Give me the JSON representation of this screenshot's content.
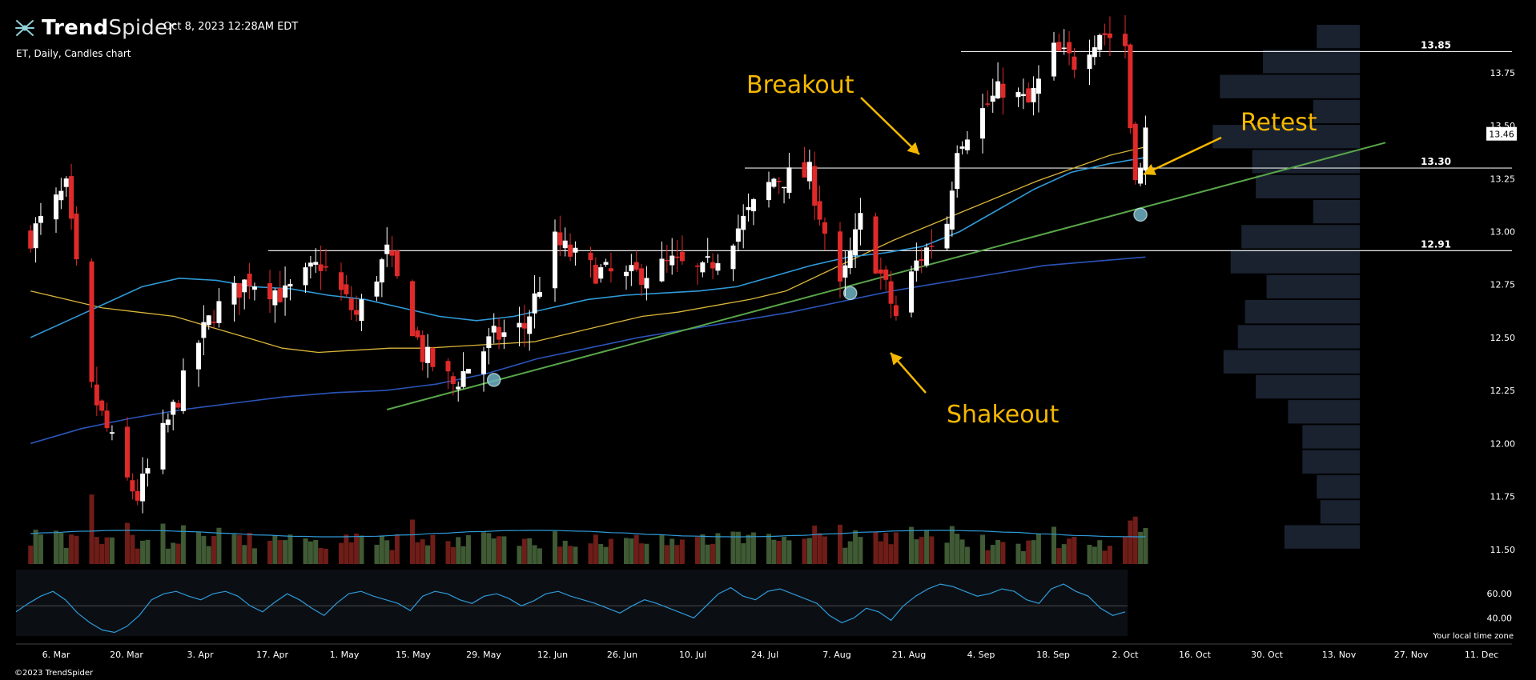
{
  "header": {
    "brand_bold": "Trend",
    "brand_light": "Spider",
    "datetime": "Oct 8, 2023 12:28AM EDT",
    "symbol_line": "ET, Daily, Candles chart"
  },
  "footer": {
    "copyright": "©2023 TrendSpider",
    "timezone_note": "Your local time zone"
  },
  "colors": {
    "background": "#000000",
    "up_candle": "#ffffff",
    "down_candle": "#e02a2a",
    "sma20": "#d9b53a",
    "sma50": "#2f9ad8",
    "sma200": "#2b54b8",
    "trendline": "#5aa64a",
    "annotation": "#f5b800",
    "volume_profile": "#1a2230",
    "volume_up": "#3f5a34",
    "volume_down": "#6e1d18"
  },
  "chart_data": {
    "type": "candlestick",
    "symbol": "ET",
    "interval": "Daily",
    "x_ticks": [
      "6. Mar",
      "20. Mar",
      "3. Apr",
      "17. Apr",
      "1. May",
      "15. May",
      "29. May",
      "12. Jun",
      "26. Jun",
      "10. Jul",
      "24. Jul",
      "7. Aug",
      "21. Aug",
      "4. Sep",
      "18. Sep",
      "2. Oct",
      "16. Oct",
      "30. Oct",
      "13. Nov",
      "27. Nov",
      "11. Dec"
    ],
    "y_ticks": [
      13.75,
      13.5,
      13.25,
      13.0,
      12.75,
      12.5,
      12.25,
      12.0,
      11.75,
      11.5
    ],
    "y_tick_labels": [
      "13.75",
      "13.50",
      "13.25",
      "13.00",
      "12.75",
      "12.50",
      "12.25",
      "12.00",
      "11.75",
      "11.50"
    ],
    "ylim": [
      11.45,
      13.98
    ],
    "current_price": 13.46,
    "current_price_label": "13.46",
    "levels": [
      {
        "value": 13.85,
        "label": "13.85"
      },
      {
        "value": 13.3,
        "label": "13.30"
      },
      {
        "value": 12.91,
        "label": "12.91"
      }
    ],
    "anchors": [
      {
        "date": "2023-03-01",
        "close": 12.98
      },
      {
        "date": "2023-03-08",
        "close": 13.2
      },
      {
        "date": "2023-03-13",
        "close": 12.25
      },
      {
        "date": "2023-03-20",
        "close": 11.82
      },
      {
        "date": "2023-03-22",
        "close": 11.75
      },
      {
        "date": "2023-03-30",
        "close": 12.22
      },
      {
        "date": "2023-04-03",
        "close": 12.48
      },
      {
        "date": "2023-04-06",
        "close": 12.62
      },
      {
        "date": "2023-04-13",
        "close": 12.78
      },
      {
        "date": "2023-04-20",
        "close": 12.7
      },
      {
        "date": "2023-04-27",
        "close": 12.85
      },
      {
        "date": "2023-05-04",
        "close": 12.6
      },
      {
        "date": "2023-05-10",
        "close": 12.9
      },
      {
        "date": "2023-05-17",
        "close": 12.42
      },
      {
        "date": "2023-05-23",
        "close": 12.28
      },
      {
        "date": "2023-05-31",
        "close": 12.5
      },
      {
        "date": "2023-06-06",
        "close": 12.55
      },
      {
        "date": "2023-06-12",
        "close": 12.95
      },
      {
        "date": "2023-06-19",
        "close": 12.82
      },
      {
        "date": "2023-06-26",
        "close": 12.78
      },
      {
        "date": "2023-07-05",
        "close": 12.85
      },
      {
        "date": "2023-07-11",
        "close": 12.8
      },
      {
        "date": "2023-07-19",
        "close": 13.05
      },
      {
        "date": "2023-07-25",
        "close": 13.25
      },
      {
        "date": "2023-08-01",
        "close": 13.27
      },
      {
        "date": "2023-08-07",
        "close": 12.72
      },
      {
        "date": "2023-08-11",
        "close": 13.05
      },
      {
        "date": "2023-08-18",
        "close": 12.6
      },
      {
        "date": "2023-08-22",
        "close": 12.85
      },
      {
        "date": "2023-08-28",
        "close": 13.05
      },
      {
        "date": "2023-08-30",
        "close": 13.42
      },
      {
        "date": "2023-09-05",
        "close": 13.6
      },
      {
        "date": "2023-09-08",
        "close": 13.68
      },
      {
        "date": "2023-09-13",
        "close": 13.6
      },
      {
        "date": "2023-09-18",
        "close": 13.85
      },
      {
        "date": "2023-09-22",
        "close": 13.8
      },
      {
        "date": "2023-09-27",
        "close": 13.95
      },
      {
        "date": "2023-10-02",
        "close": 13.88
      },
      {
        "date": "2023-10-03",
        "close": 13.5
      },
      {
        "date": "2023-10-04",
        "close": 13.3
      },
      {
        "date": "2023-10-05",
        "close": 13.28
      },
      {
        "date": "2023-10-06",
        "close": 13.46
      }
    ],
    "series": [
      {
        "values": [
          12.72,
          12.68,
          12.64,
          12.62,
          12.6,
          12.55,
          12.5,
          12.45,
          12.43,
          12.44,
          12.45,
          12.45,
          12.46,
          12.47,
          12.48,
          12.52,
          12.56,
          12.6,
          12.62,
          12.65,
          12.68,
          12.72,
          12.8,
          12.88,
          12.96,
          13.03,
          13.1,
          13.17,
          13.24,
          13.3,
          13.36,
          13.4
        ]
      },
      {
        "values": [
          12.5,
          12.58,
          12.66,
          12.74,
          12.78,
          12.77,
          12.74,
          12.73,
          12.7,
          12.68,
          12.64,
          12.6,
          12.58,
          12.6,
          12.64,
          12.68,
          12.7,
          12.71,
          12.72,
          12.74,
          12.79,
          12.84,
          12.88,
          12.9,
          12.93,
          13.0,
          13.1,
          13.2,
          13.28,
          13.32,
          13.35
        ]
      },
      {
        "values": [
          12.0,
          12.07,
          12.12,
          12.16,
          12.19,
          12.22,
          12.24,
          12.25,
          12.28,
          12.33,
          12.4,
          12.45,
          12.5,
          12.54,
          12.58,
          12.62,
          12.67,
          12.72,
          12.76,
          12.8,
          12.84,
          12.86,
          12.88
        ]
      }
    ],
    "volume_profile": [
      0.21,
      0.11,
      0.12,
      0.16,
      0.16,
      0.2,
      0.29,
      0.38,
      0.34,
      0.32,
      0.26,
      0.36,
      0.33,
      0.13,
      0.29,
      0.3,
      0.41,
      0.13,
      0.39,
      0.27,
      0.12
    ],
    "rsi": {
      "y_ticks": [
        60,
        40
      ],
      "y_tick_labels": [
        "60.00",
        "40.00"
      ],
      "values": [
        45,
        52,
        58,
        62,
        55,
        44,
        36,
        30,
        28,
        33,
        42,
        55,
        60,
        62,
        58,
        55,
        60,
        62,
        58,
        50,
        45,
        53,
        60,
        55,
        48,
        42,
        52,
        60,
        62,
        58,
        55,
        52,
        46,
        58,
        62,
        60,
        55,
        52,
        58,
        60,
        56,
        50,
        54,
        60,
        62,
        58,
        55,
        52,
        48,
        44,
        50,
        55,
        52,
        48,
        44,
        40,
        50,
        60,
        65,
        58,
        55,
        62,
        64,
        60,
        56,
        52,
        42,
        36,
        40,
        48,
        45,
        38,
        50,
        58,
        64,
        68,
        66,
        62,
        58,
        60,
        64,
        62,
        55,
        52,
        64,
        68,
        62,
        58,
        48,
        42,
        45
      ]
    },
    "annotations": [
      {
        "label": "Breakout"
      },
      {
        "label": "Retest"
      },
      {
        "label": "Shakeout"
      }
    ]
  }
}
